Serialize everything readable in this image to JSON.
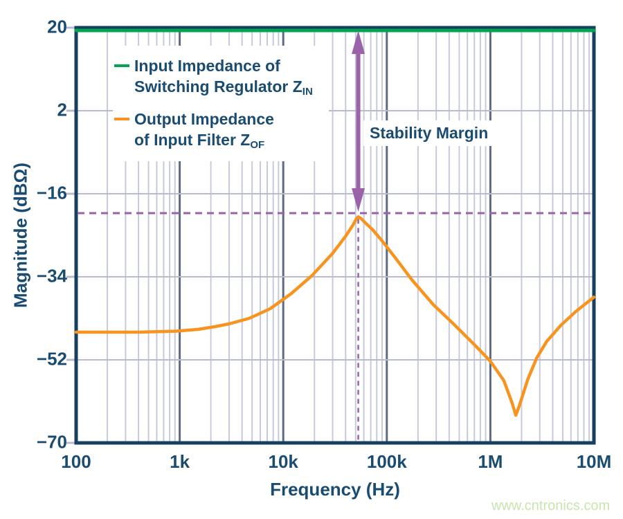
{
  "colors": {
    "navy_text": "#1a4c72",
    "frame": "#173f60",
    "green": "#00a551",
    "orange": "#f79420",
    "purple": "#9a62a8",
    "grid_minor": "#c7cada",
    "grid_major": "#5c6a86",
    "grid_horizontal": "#b7bccd",
    "watermark": "#c8e5ad"
  },
  "chart_data": {
    "type": "line",
    "title": "",
    "xlabel": "Frequency (Hz)",
    "ylabel": "Magnitude (dBΩ)",
    "x_scale": "log",
    "x_range": [
      100,
      10000000
    ],
    "y_range": [
      -70,
      20
    ],
    "grid": true,
    "legend_position": "top-left-inside",
    "x_ticks": [
      {
        "v": 100,
        "label": "100"
      },
      {
        "v": 1000,
        "label": "1k"
      },
      {
        "v": 10000,
        "label": "10k"
      },
      {
        "v": 100000,
        "label": "100k"
      },
      {
        "v": 1000000,
        "label": "1M"
      },
      {
        "v": 10000000,
        "label": "10M"
      }
    ],
    "y_ticks": [
      {
        "v": 20,
        "label": "20"
      },
      {
        "v": 2,
        "label": "2"
      },
      {
        "v": -16,
        "label": "−16"
      },
      {
        "v": -34,
        "label": "−34"
      },
      {
        "v": -52,
        "label": "−52"
      },
      {
        "v": -70,
        "label": "−70"
      }
    ],
    "series": [
      {
        "name": "Input Impedance of Switching Regulator ZIN",
        "color": "green",
        "points": [
          [
            100,
            20
          ],
          [
            10000000,
            20
          ]
        ]
      },
      {
        "name": "Output Impedance of Input Filter ZOF",
        "color": "orange",
        "points": [
          [
            100,
            -46
          ],
          [
            400,
            -46
          ],
          [
            900,
            -45.8
          ],
          [
            1500,
            -45.4
          ],
          [
            2200,
            -44.8
          ],
          [
            3000,
            -44.2
          ],
          [
            4700,
            -43
          ],
          [
            7500,
            -40.9
          ],
          [
            12000,
            -37.6
          ],
          [
            19000,
            -33.7
          ],
          [
            30000,
            -28.9
          ],
          [
            40000,
            -25.2
          ],
          [
            47000,
            -22.8
          ],
          [
            51000,
            -21.4
          ],
          [
            53000,
            -21
          ],
          [
            56000,
            -21.3
          ],
          [
            62000,
            -22.3
          ],
          [
            73000,
            -23.8
          ],
          [
            90000,
            -26.2
          ],
          [
            120000,
            -29.8
          ],
          [
            174000,
            -34.6
          ],
          [
            280000,
            -40
          ],
          [
            440000,
            -44.2
          ],
          [
            700000,
            -48.7
          ],
          [
            1000000,
            -52.3
          ],
          [
            1350000,
            -56.5
          ],
          [
            1630000,
            -61.5
          ],
          [
            1760000,
            -64
          ],
          [
            1900000,
            -62
          ],
          [
            2300000,
            -56.2
          ],
          [
            2800000,
            -51.6
          ],
          [
            3500000,
            -48
          ],
          [
            4800000,
            -44.5
          ],
          [
            6700000,
            -41.5
          ],
          [
            10000000,
            -38.4
          ]
        ]
      }
    ],
    "annotations": {
      "stability_label": "Stability Margin",
      "arrow_freq": 53000,
      "dashed_h_db": -20.2,
      "dashed_v_freq": 53000,
      "zof_peak": [
        53000,
        -21
      ],
      "zof_notch": [
        1760000,
        -64
      ],
      "zin_level_db": 20
    }
  },
  "legend": {
    "items": [
      {
        "line1": "Input Impedance of",
        "line2": "Switching Regulator Z",
        "sub": "IN",
        "color": "#00a551"
      },
      {
        "line1": "Output Impedance",
        "line2": "of Input Filter Z",
        "sub": "OF",
        "color": "#f79420"
      }
    ]
  },
  "watermark": {
    "text": "www.cntronics.com",
    "color": "#c8e5ad"
  }
}
